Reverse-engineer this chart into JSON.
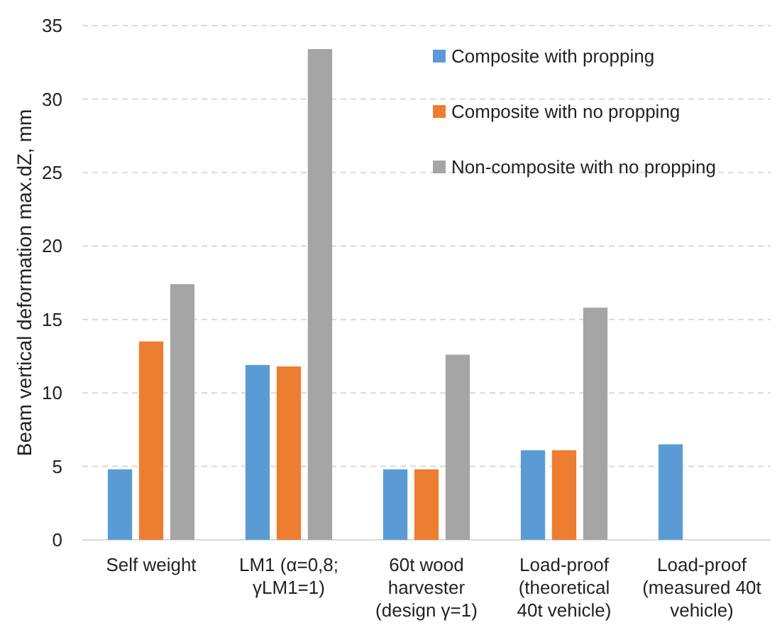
{
  "chart_data": {
    "type": "bar",
    "ylabel": "Beam vertical deformation max.dZ, mm",
    "categories": [
      "Self weight",
      "LM1 (α=0,8;\nγLM1=1)",
      "60t wood\nharvester\n(design γ=1)",
      "Load-proof\n(theoretical\n40t vehicle)",
      "Load-proof\n(measured 40t\nvehicle)"
    ],
    "series": [
      {
        "name": "Composite with propping",
        "color": "#5b9bd5",
        "values": [
          4.8,
          11.9,
          4.8,
          6.1,
          6.5
        ]
      },
      {
        "name": "Composite with no propping",
        "color": "#ed7d31",
        "values": [
          13.5,
          11.8,
          4.8,
          6.1,
          null
        ]
      },
      {
        "name": "Non-composite with no propping",
        "color": "#a5a5a5",
        "values": [
          17.4,
          33.4,
          12.6,
          15.8,
          null
        ]
      }
    ],
    "ylim": [
      0,
      35
    ],
    "yticks": [
      0,
      5,
      10,
      15,
      20,
      25,
      30,
      35
    ],
    "grid": "y",
    "legend": "top right"
  }
}
